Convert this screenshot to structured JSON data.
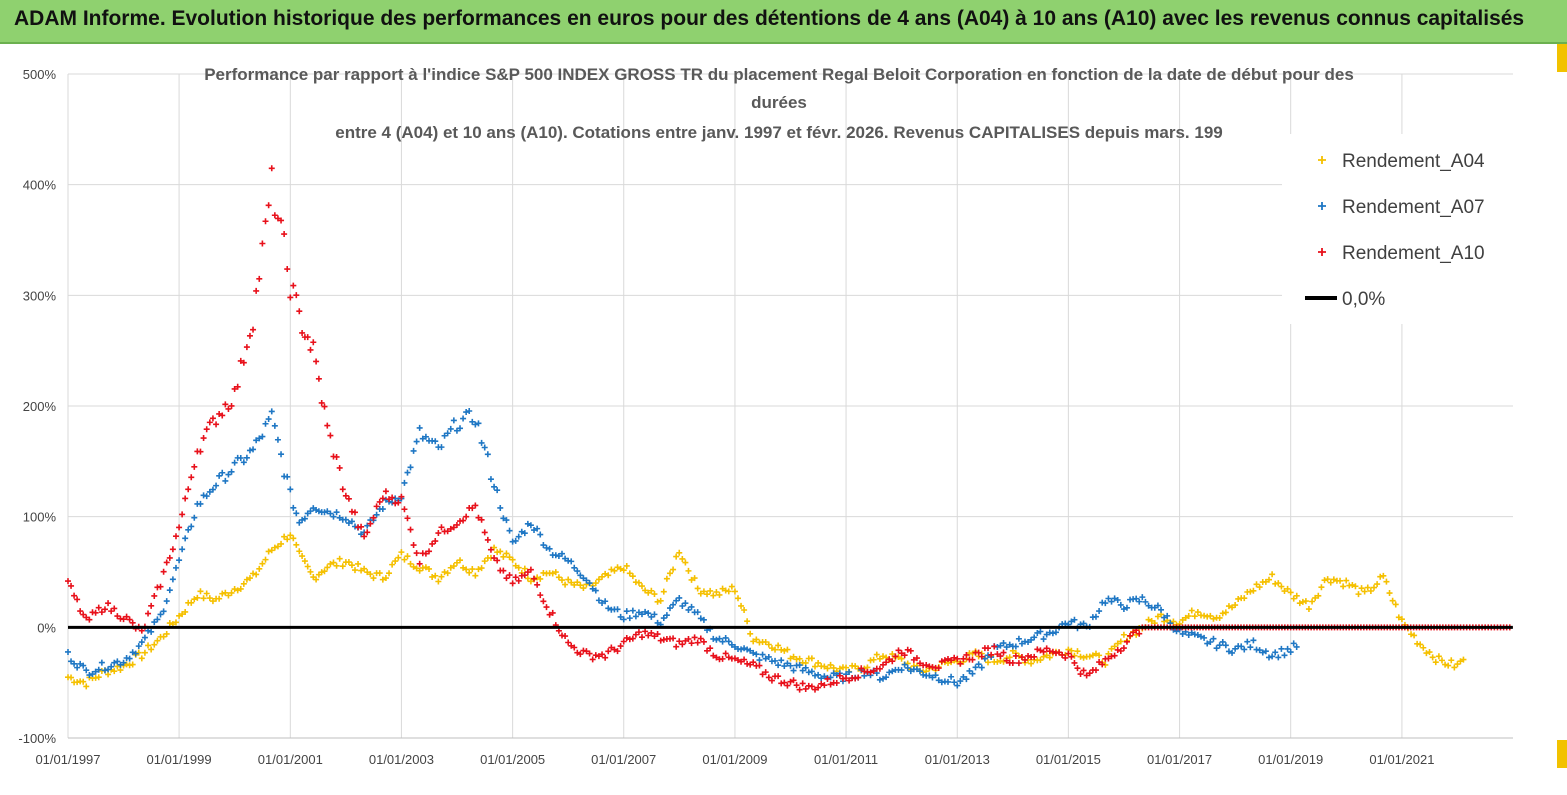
{
  "banner": {
    "title": "ADAM Informe. Evolution historique des performances en euros pour des détentions de 4 ans (A04) à 10 ans (A10) avec les revenus connus capitalisés"
  },
  "chart_data": {
    "type": "scatter",
    "title_lines": [
      "Performance par rapport à l'indice S&P 500 INDEX GROSS TR  du placement Regal Beloit Corporation en fonction de la date de début pour des",
      "durées",
      "entre 4 (A04) et 10 ans (A10). Cotations entre janv. 1997 et févr. 2026. Revenus CAPITALISES depuis mars. 199"
    ],
    "x_tick_labels": [
      "01/01/1997",
      "01/01/1999",
      "01/01/2001",
      "01/01/2003",
      "01/01/2005",
      "01/01/2007",
      "01/01/2009",
      "01/01/2011",
      "01/01/2013",
      "01/01/2015",
      "01/01/2017",
      "01/01/2019",
      "01/01/2021"
    ],
    "y_tick_labels": [
      "500%",
      "400%",
      "300%",
      "200%",
      "100%",
      "0%",
      "-100%"
    ],
    "xlim": [
      "1997-01-01",
      "2023-01-01"
    ],
    "ylim": [
      -100,
      500
    ],
    "grid": true,
    "legend_position": "right",
    "series": [
      {
        "name": "Rendement_A04",
        "color": "#f5c000",
        "marker": "+",
        "points": [
          [
            "1997-01-01",
            -45
          ],
          [
            "1997-05-01",
            -50
          ],
          [
            "1997-09-01",
            -40
          ],
          [
            "1998-01-01",
            -35
          ],
          [
            "1998-05-01",
            -25
          ],
          [
            "1998-09-01",
            -10
          ],
          [
            "1999-01-01",
            10
          ],
          [
            "1999-05-01",
            30
          ],
          [
            "1999-09-01",
            25
          ],
          [
            "2000-01-01",
            35
          ],
          [
            "2000-05-01",
            45
          ],
          [
            "2000-09-01",
            70
          ],
          [
            "2001-01-01",
            85
          ],
          [
            "2001-03-01",
            65
          ],
          [
            "2001-06-01",
            45
          ],
          [
            "2001-09-01",
            55
          ],
          [
            "2002-01-01",
            60
          ],
          [
            "2002-05-01",
            50
          ],
          [
            "2002-09-01",
            45
          ],
          [
            "2003-01-01",
            65
          ],
          [
            "2003-05-01",
            55
          ],
          [
            "2003-09-01",
            45
          ],
          [
            "2004-01-01",
            60
          ],
          [
            "2004-05-01",
            50
          ],
          [
            "2004-09-01",
            70
          ],
          [
            "2005-01-01",
            60
          ],
          [
            "2005-05-01",
            45
          ],
          [
            "2005-09-01",
            50
          ],
          [
            "2006-01-01",
            40
          ],
          [
            "2006-05-01",
            35
          ],
          [
            "2006-09-01",
            45
          ],
          [
            "2007-01-01",
            55
          ],
          [
            "2007-05-01",
            35
          ],
          [
            "2007-09-01",
            25
          ],
          [
            "2008-01-01",
            70
          ],
          [
            "2008-05-01",
            35
          ],
          [
            "2008-09-01",
            30
          ],
          [
            "2009-01-01",
            35
          ],
          [
            "2009-05-01",
            -10
          ],
          [
            "2009-09-01",
            -15
          ],
          [
            "2010-01-01",
            -25
          ],
          [
            "2010-05-01",
            -30
          ],
          [
            "2010-09-01",
            -35
          ],
          [
            "2011-01-01",
            -40
          ],
          [
            "2011-05-01",
            -35
          ],
          [
            "2011-09-01",
            -25
          ],
          [
            "2012-01-01",
            -30
          ],
          [
            "2012-05-01",
            -40
          ],
          [
            "2012-09-01",
            -35
          ],
          [
            "2013-01-01",
            -30
          ],
          [
            "2013-05-01",
            -25
          ],
          [
            "2013-09-01",
            -30
          ],
          [
            "2014-01-01",
            -25
          ],
          [
            "2014-05-01",
            -30
          ],
          [
            "2014-09-01",
            -25
          ],
          [
            "2015-01-01",
            -20
          ],
          [
            "2015-05-01",
            -25
          ],
          [
            "2015-09-01",
            -30
          ],
          [
            "2016-01-01",
            -10
          ],
          [
            "2016-05-01",
            0
          ],
          [
            "2016-09-01",
            10
          ],
          [
            "2017-01-01",
            5
          ],
          [
            "2017-05-01",
            15
          ],
          [
            "2017-09-01",
            10
          ],
          [
            "2018-01-01",
            20
          ],
          [
            "2018-05-01",
            35
          ],
          [
            "2018-09-01",
            45
          ],
          [
            "2019-01-01",
            30
          ],
          [
            "2019-05-01",
            20
          ],
          [
            "2019-09-01",
            45
          ],
          [
            "2020-01-01",
            40
          ],
          [
            "2020-05-01",
            30
          ],
          [
            "2020-09-01",
            45
          ],
          [
            "2021-01-01",
            5
          ],
          [
            "2021-05-01",
            -15
          ],
          [
            "2021-09-01",
            -30
          ],
          [
            "2022-01-01",
            -35
          ],
          [
            "2022-03-01",
            -25
          ]
        ]
      },
      {
        "name": "Rendement_A07",
        "color": "#1f77c4",
        "marker": "+",
        "points": [
          [
            "1997-01-01",
            -25
          ],
          [
            "1997-05-01",
            -40
          ],
          [
            "1997-09-01",
            -35
          ],
          [
            "1998-01-01",
            -30
          ],
          [
            "1998-05-01",
            -15
          ],
          [
            "1998-09-01",
            10
          ],
          [
            "1999-01-01",
            60
          ],
          [
            "1999-05-01",
            110
          ],
          [
            "1999-09-01",
            130
          ],
          [
            "2000-01-01",
            145
          ],
          [
            "2000-05-01",
            160
          ],
          [
            "2000-09-01",
            190
          ],
          [
            "2001-01-01",
            120
          ],
          [
            "2001-03-01",
            95
          ],
          [
            "2001-06-01",
            110
          ],
          [
            "2001-09-01",
            105
          ],
          [
            "2002-01-01",
            100
          ],
          [
            "2002-05-01",
            85
          ],
          [
            "2002-09-01",
            110
          ],
          [
            "2003-01-01",
            120
          ],
          [
            "2003-05-01",
            175
          ],
          [
            "2003-09-01",
            160
          ],
          [
            "2004-01-01",
            185
          ],
          [
            "2004-05-01",
            190
          ],
          [
            "2004-09-01",
            130
          ],
          [
            "2005-01-01",
            75
          ],
          [
            "2005-05-01",
            95
          ],
          [
            "2005-09-01",
            70
          ],
          [
            "2006-01-01",
            60
          ],
          [
            "2006-05-01",
            45
          ],
          [
            "2006-09-01",
            20
          ],
          [
            "2007-01-01",
            10
          ],
          [
            "2007-05-01",
            15
          ],
          [
            "2007-09-01",
            5
          ],
          [
            "2008-01-01",
            25
          ],
          [
            "2008-05-01",
            10
          ],
          [
            "2008-09-01",
            -10
          ],
          [
            "2009-01-01",
            -15
          ],
          [
            "2009-05-01",
            -25
          ],
          [
            "2009-09-01",
            -30
          ],
          [
            "2010-01-01",
            -35
          ],
          [
            "2010-05-01",
            -40
          ],
          [
            "2010-09-01",
            -45
          ],
          [
            "2011-01-01",
            -45
          ],
          [
            "2011-05-01",
            -40
          ],
          [
            "2011-09-01",
            -45
          ],
          [
            "2012-01-01",
            -35
          ],
          [
            "2012-05-01",
            -40
          ],
          [
            "2012-09-01",
            -45
          ],
          [
            "2013-01-01",
            -50
          ],
          [
            "2013-05-01",
            -40
          ],
          [
            "2013-09-01",
            -20
          ],
          [
            "2014-01-01",
            -15
          ],
          [
            "2014-05-01",
            -10
          ],
          [
            "2014-09-01",
            -5
          ],
          [
            "2015-01-01",
            5
          ],
          [
            "2015-05-01",
            0
          ],
          [
            "2015-09-01",
            25
          ],
          [
            "2016-01-01",
            20
          ],
          [
            "2016-05-01",
            25
          ],
          [
            "2016-09-01",
            15
          ],
          [
            "2017-01-01",
            -5
          ],
          [
            "2017-05-01",
            -10
          ],
          [
            "2017-09-01",
            -15
          ],
          [
            "2018-01-01",
            -20
          ],
          [
            "2018-05-01",
            -15
          ],
          [
            "2018-09-01",
            -25
          ],
          [
            "2019-01-01",
            -20
          ],
          [
            "2019-03-01",
            -15
          ]
        ]
      },
      {
        "name": "Rendement_A10",
        "color": "#e8111b",
        "marker": "+",
        "points": [
          [
            "1997-01-01",
            40
          ],
          [
            "1997-05-01",
            5
          ],
          [
            "1997-09-01",
            20
          ],
          [
            "1998-01-01",
            10
          ],
          [
            "1998-05-01",
            -5
          ],
          [
            "1998-09-01",
            40
          ],
          [
            "1999-01-01",
            90
          ],
          [
            "1999-05-01",
            160
          ],
          [
            "1999-09-01",
            190
          ],
          [
            "2000-01-01",
            210
          ],
          [
            "2000-05-01",
            280
          ],
          [
            "2000-09-01",
            400
          ],
          [
            "2001-01-01",
            310
          ],
          [
            "2001-03-01",
            280
          ],
          [
            "2001-06-01",
            250
          ],
          [
            "2001-09-01",
            180
          ],
          [
            "2002-01-01",
            120
          ],
          [
            "2002-05-01",
            80
          ],
          [
            "2002-09-01",
            120
          ],
          [
            "2003-01-01",
            115
          ],
          [
            "2003-05-01",
            60
          ],
          [
            "2003-09-01",
            85
          ],
          [
            "2004-01-01",
            95
          ],
          [
            "2004-05-01",
            110
          ],
          [
            "2004-09-01",
            60
          ],
          [
            "2005-01-01",
            40
          ],
          [
            "2005-05-01",
            50
          ],
          [
            "2005-09-01",
            15
          ],
          [
            "2006-01-01",
            -15
          ],
          [
            "2006-05-01",
            -25
          ],
          [
            "2006-09-01",
            -25
          ],
          [
            "2007-01-01",
            -15
          ],
          [
            "2007-05-01",
            -5
          ],
          [
            "2007-09-01",
            -10
          ],
          [
            "2008-01-01",
            -15
          ],
          [
            "2008-05-01",
            -10
          ],
          [
            "2008-09-01",
            -25
          ],
          [
            "2009-01-01",
            -30
          ],
          [
            "2009-05-01",
            -35
          ],
          [
            "2009-09-01",
            -45
          ],
          [
            "2010-01-01",
            -50
          ],
          [
            "2010-05-01",
            -55
          ],
          [
            "2010-09-01",
            -50
          ],
          [
            "2011-01-01",
            -45
          ],
          [
            "2011-05-01",
            -40
          ],
          [
            "2011-09-01",
            -35
          ],
          [
            "2012-01-01",
            -20
          ],
          [
            "2012-05-01",
            -30
          ],
          [
            "2012-09-01",
            -35
          ],
          [
            "2013-01-01",
            -30
          ],
          [
            "2013-05-01",
            -25
          ],
          [
            "2013-09-01",
            -20
          ],
          [
            "2014-01-01",
            -30
          ],
          [
            "2014-05-01",
            -25
          ],
          [
            "2014-09-01",
            -20
          ],
          [
            "2015-01-01",
            -25
          ],
          [
            "2015-05-01",
            -45
          ],
          [
            "2015-09-01",
            -30
          ],
          [
            "2016-01-01",
            -15
          ],
          [
            "2016-05-01",
            0
          ],
          [
            "2017-01-01",
            0
          ],
          [
            "2018-01-01",
            0
          ],
          [
            "2019-01-01",
            0
          ],
          [
            "2020-01-01",
            0
          ],
          [
            "2021-01-01",
            0
          ],
          [
            "2022-01-01",
            0
          ],
          [
            "2022-12-31",
            0
          ]
        ]
      },
      {
        "name": "0,0%",
        "color": "#000000",
        "type": "line",
        "points": [
          [
            "1997-01-01",
            0
          ],
          [
            "2022-12-31",
            0
          ]
        ]
      }
    ]
  }
}
